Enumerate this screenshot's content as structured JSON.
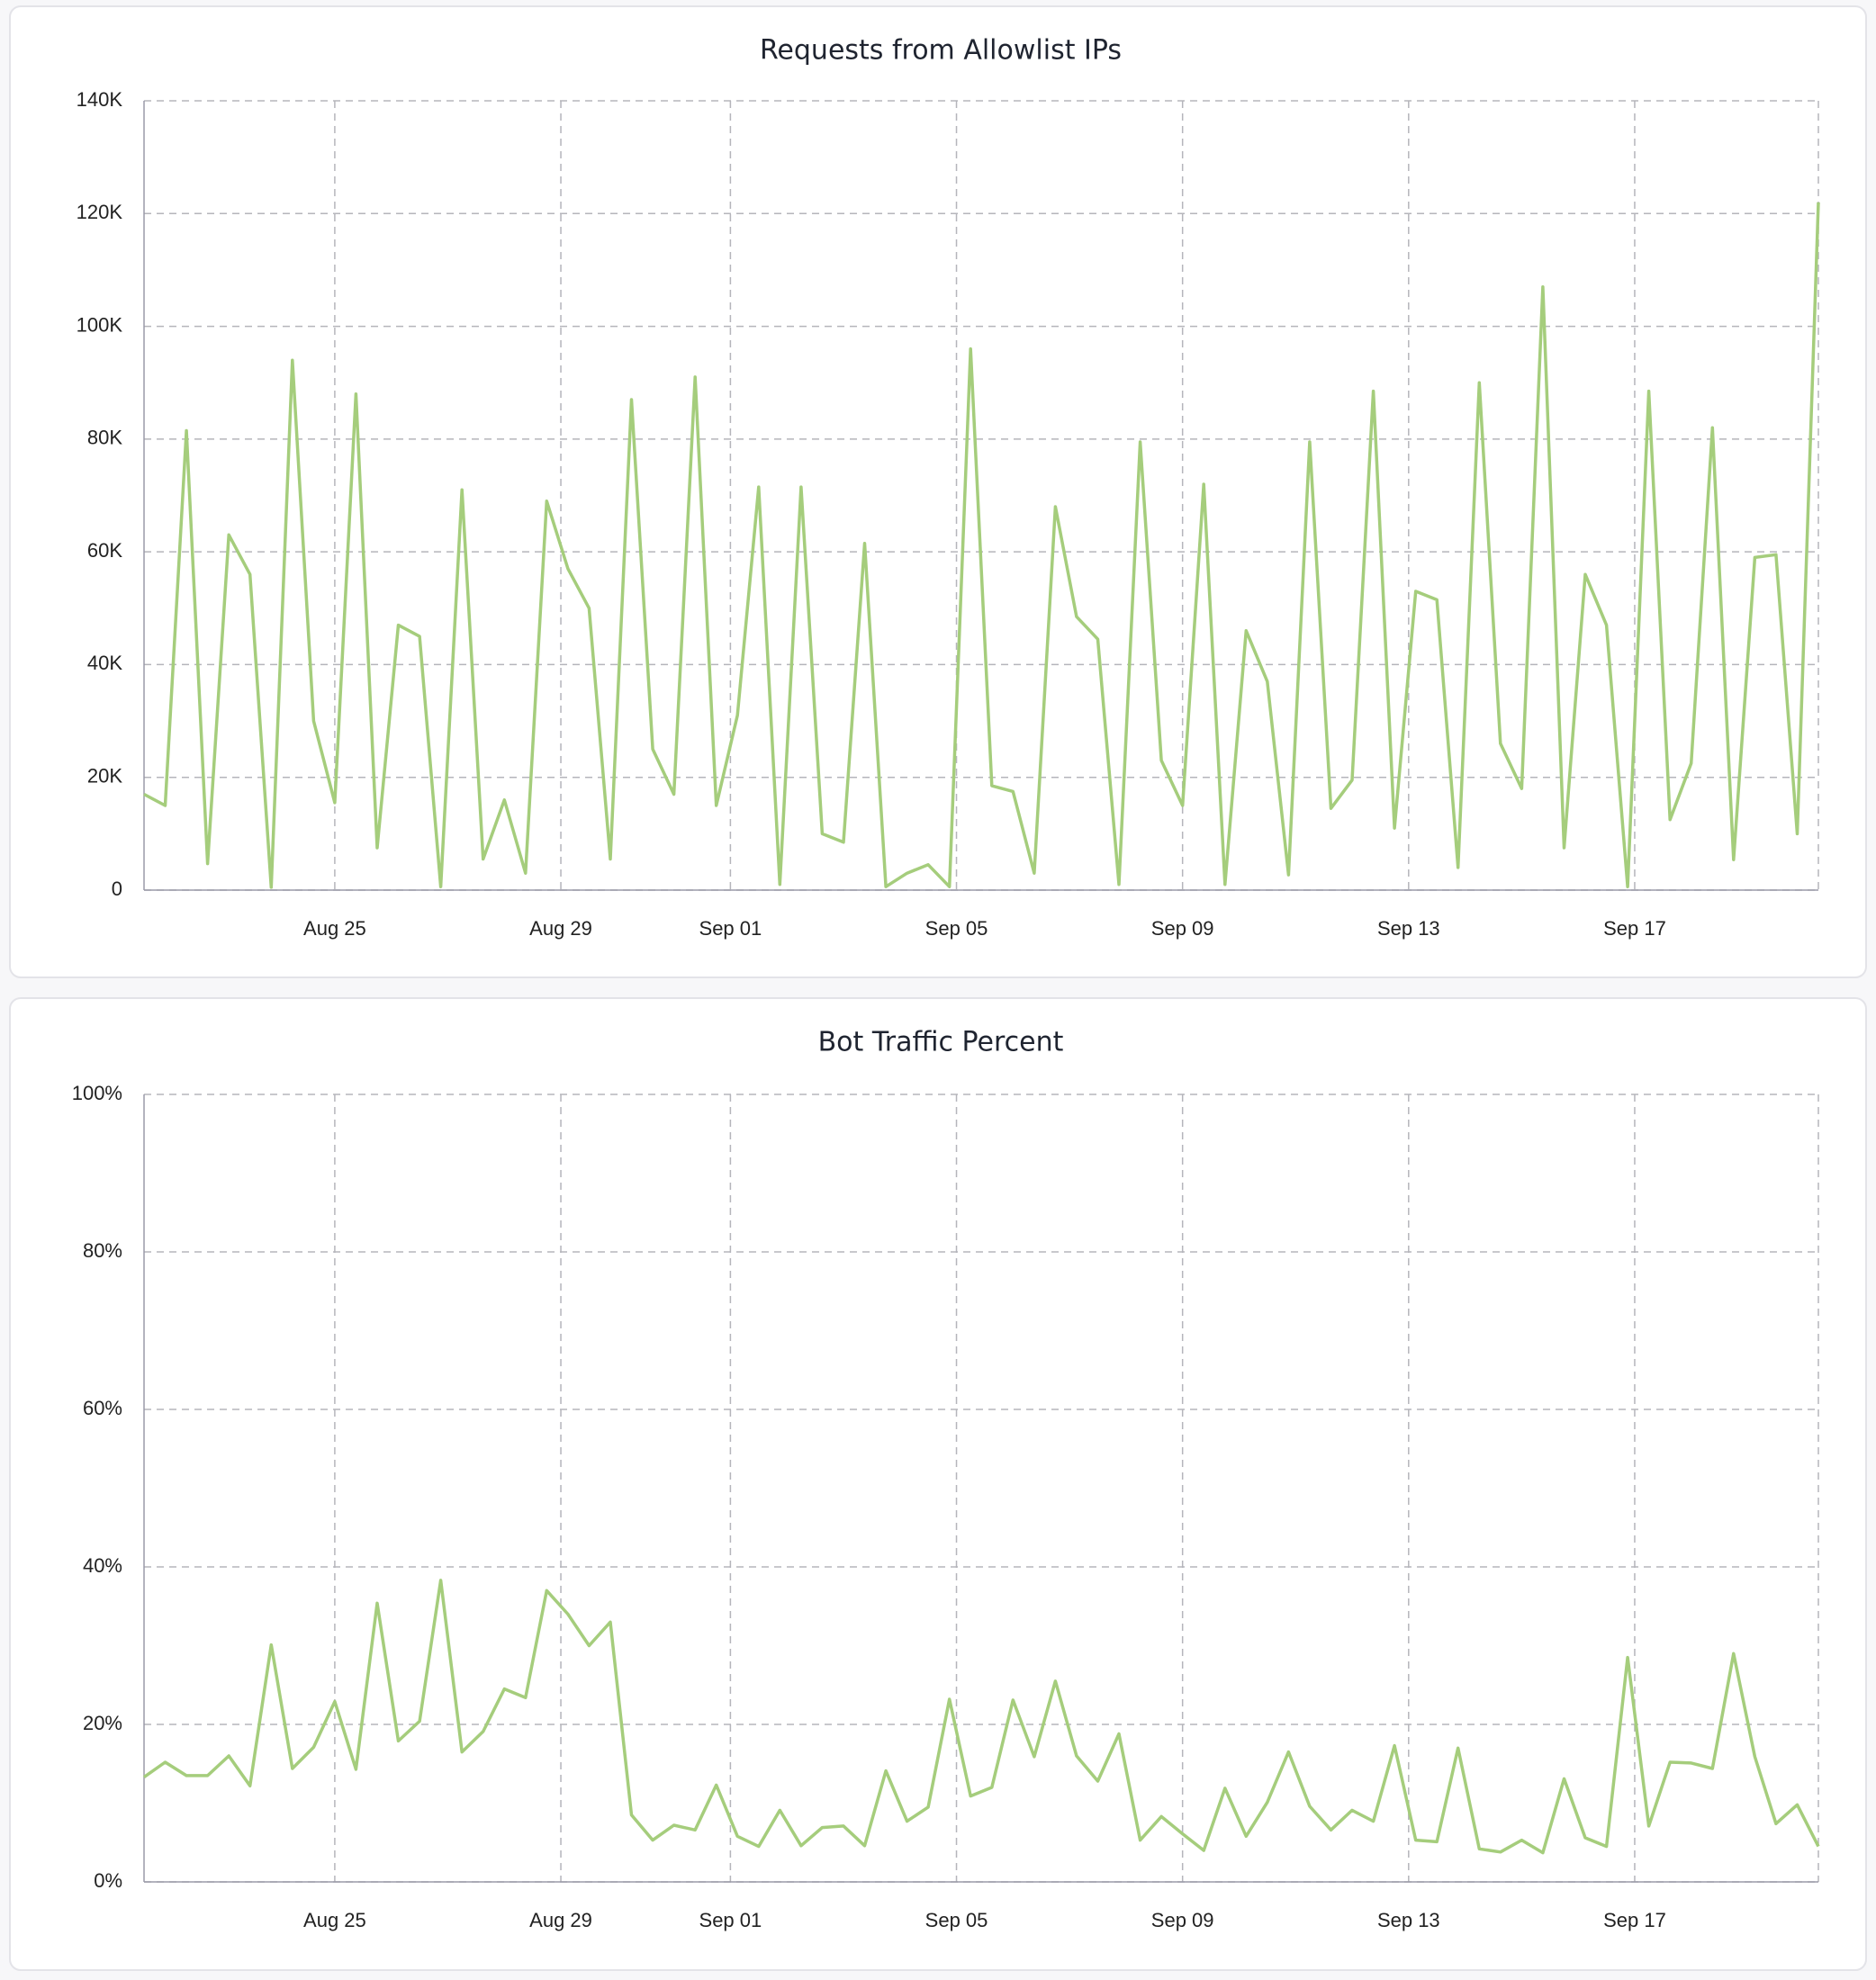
{
  "chart_data": [
    {
      "type": "line",
      "title": "Requests from Allowlist IPs",
      "color": "#a5cd7c",
      "x": [
        21.625,
        22,
        22.375,
        22.75,
        23.125,
        23.5,
        23.875,
        24.25,
        24.625,
        25,
        25.375,
        25.75,
        26.125,
        26.5,
        26.875,
        27.25,
        27.625,
        28,
        28.375,
        28.75,
        29.125,
        29.5,
        29.875,
        30.25,
        30.625,
        31,
        31.375,
        31.75,
        32.125,
        32.5,
        32.875,
        33.25,
        33.625,
        34,
        34.375,
        34.75,
        35.125,
        35.5,
        35.875,
        36.25,
        36.625,
        37,
        37.375,
        37.75,
        38.125,
        38.5,
        38.875,
        39.25,
        39.625,
        40,
        40.375,
        40.75,
        41.125,
        41.5,
        41.875,
        42.25,
        42.625,
        43,
        43.375,
        43.75,
        44.125,
        44.5,
        44.875,
        45.25,
        45.625,
        46,
        46.375,
        46.75,
        47.125,
        47.5,
        47.875,
        48.25,
        48.625,
        49,
        49.375,
        49.75,
        50.125,
        50.5,
        50.875,
        51.25
      ],
      "values": [
        17000,
        15000,
        81500,
        4700,
        63000,
        56000,
        500,
        94000,
        30000,
        15500,
        88000,
        7500,
        47000,
        45000,
        600,
        71000,
        5500,
        16000,
        3000,
        69000,
        57000,
        50000,
        5500,
        87000,
        25000,
        17000,
        91000,
        15000,
        31000,
        71500,
        1000,
        71500,
        10000,
        8500,
        61500,
        600,
        3000,
        4500,
        600,
        96000,
        18500,
        17500,
        3000,
        68000,
        48500,
        44500,
        1000,
        79500,
        23000,
        15000,
        72000,
        1000,
        46000,
        37000,
        2700,
        79500,
        14500,
        19500,
        88500,
        11000,
        53000,
        51500,
        4000,
        90000,
        26000,
        18000,
        107000,
        7500,
        56000,
        47000,
        600,
        88500,
        12500,
        22500,
        82000,
        5400,
        59000,
        59500,
        10000,
        122000
      ],
      "xlim": [
        21.625,
        51.25
      ],
      "xticks": [
        {
          "value": 25,
          "label": "Aug 25"
        },
        {
          "value": 29,
          "label": "Aug 29"
        },
        {
          "value": 32,
          "label": "Sep 01"
        },
        {
          "value": 36,
          "label": "Sep 05"
        },
        {
          "value": 40,
          "label": "Sep 09"
        },
        {
          "value": 44,
          "label": "Sep 13"
        },
        {
          "value": 48,
          "label": "Sep 17"
        }
      ],
      "ylim": [
        0,
        140000
      ],
      "yticks": [
        0,
        {
          "value": 20000,
          "label": "20K"
        },
        {
          "value": 40000,
          "label": "40K"
        },
        {
          "value": 60000,
          "label": "60K"
        },
        {
          "value": 80000,
          "label": "80K"
        },
        {
          "value": 100000,
          "label": "100K"
        },
        {
          "value": 120000,
          "label": "120K"
        },
        {
          "value": 140000,
          "label": "140K"
        }
      ],
      "grid": true
    },
    {
      "type": "line",
      "title": "Bot Traffic Percent",
      "color": "#a5cd7c",
      "x": [
        21.625,
        22,
        22.375,
        22.75,
        23.125,
        23.5,
        23.875,
        24.25,
        24.625,
        25,
        25.375,
        25.75,
        26.125,
        26.5,
        26.875,
        27.25,
        27.625,
        28,
        28.375,
        28.75,
        29.125,
        29.5,
        29.875,
        30.25,
        30.625,
        31,
        31.375,
        31.75,
        32.125,
        32.5,
        32.875,
        33.25,
        33.625,
        34,
        34.375,
        34.75,
        35.125,
        35.5,
        35.875,
        36.25,
        36.625,
        37,
        37.375,
        37.75,
        38.125,
        38.5,
        38.875,
        39.25,
        39.625,
        40,
        40.375,
        40.75,
        41.125,
        41.5,
        41.875,
        42.25,
        42.625,
        43,
        43.375,
        43.75,
        44.125,
        44.5,
        44.875,
        45.25,
        45.625,
        46,
        46.375,
        46.75,
        47.125,
        47.5,
        47.875,
        48.25,
        48.625,
        49,
        49.375,
        49.75,
        50.125,
        50.5,
        50.875,
        51.25
      ],
      "values": [
        13.3,
        15.2,
        13.5,
        13.5,
        16,
        12.2,
        30.1,
        14.4,
        17.1,
        22.9,
        14.3,
        35.4,
        17.9,
        20.4,
        38.3,
        16.5,
        19.1,
        24.5,
        23.4,
        37,
        34,
        30,
        33,
        8.5,
        5.3,
        7.2,
        6.6,
        12.3,
        5.8,
        4.5,
        9.1,
        4.6,
        6.9,
        7.1,
        4.6,
        14.1,
        7.7,
        9.5,
        23.2,
        10.9,
        12,
        23.1,
        15.9,
        25.5,
        16,
        12.8,
        18.8,
        5.3,
        8.3,
        6.1,
        4,
        11.9,
        5.8,
        10.1,
        16.5,
        9.6,
        6.6,
        9.1,
        7.7,
        17.3,
        5.3,
        5.1,
        17,
        4.2,
        3.8,
        5.3,
        3.7,
        13.1,
        5.6,
        4.5,
        28.5,
        7.1,
        15.2,
        15.1,
        14.4,
        29,
        15.9,
        7.4,
        9.8,
        4.5
      ],
      "xlim": [
        21.625,
        51.25
      ],
      "xticks": [
        {
          "value": 25,
          "label": "Aug 25"
        },
        {
          "value": 29,
          "label": "Aug 29"
        },
        {
          "value": 32,
          "label": "Sep 01"
        },
        {
          "value": 36,
          "label": "Sep 05"
        },
        {
          "value": 40,
          "label": "Sep 09"
        },
        {
          "value": 44,
          "label": "Sep 13"
        },
        {
          "value": 48,
          "label": "Sep 17"
        }
      ],
      "ylim": [
        0,
        100
      ],
      "yticks": [
        {
          "value": 0,
          "label": "0%"
        },
        {
          "value": 20,
          "label": "20%"
        },
        {
          "value": 40,
          "label": "40%"
        },
        {
          "value": 60,
          "label": "60%"
        },
        {
          "value": 80,
          "label": "80%"
        },
        {
          "value": 100,
          "label": "100%"
        }
      ],
      "grid": true
    }
  ]
}
